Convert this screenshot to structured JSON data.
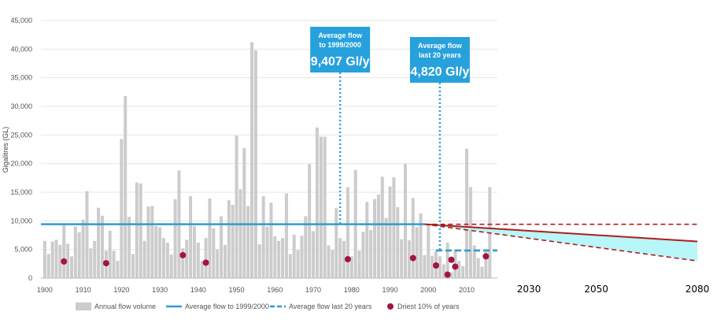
{
  "chart_data": {
    "type": "bar",
    "ylabel": "Gigalitres (GL)",
    "y_ticks": [
      "0",
      "5,000",
      "10,000",
      "15,000",
      "20,000",
      "25,000",
      "30,000",
      "35,000",
      "40,000",
      "45,000"
    ],
    "ylim": [
      0,
      45000
    ],
    "x_ticks": [
      "1900",
      "1910",
      "1920",
      "1930",
      "1940",
      "1950",
      "1960",
      "1970",
      "1980",
      "1990",
      "2000",
      "2010"
    ],
    "x_ticks_projection": [
      "2030",
      "2050",
      "2080"
    ],
    "xlim": [
      1899,
      2018
    ],
    "grid": true,
    "colors": {
      "bars": "#cccccc",
      "avg_flow": "#2e9bd6",
      "avg_last20": "#2e9bd6",
      "driest": "#a3153f",
      "projection": "#b01c1c",
      "band": "#b7f6f9",
      "callout": "#27a1dc"
    },
    "annual_flow": {
      "years": [
        1900,
        1901,
        1902,
        1903,
        1904,
        1905,
        1906,
        1907,
        1908,
        1909,
        1910,
        1911,
        1912,
        1913,
        1914,
        1915,
        1916,
        1917,
        1918,
        1919,
        1920,
        1921,
        1922,
        1923,
        1924,
        1925,
        1926,
        1927,
        1928,
        1929,
        1930,
        1931,
        1932,
        1933,
        1934,
        1935,
        1936,
        1937,
        1938,
        1939,
        1940,
        1941,
        1942,
        1943,
        1944,
        1945,
        1946,
        1947,
        1948,
        1949,
        1950,
        1951,
        1952,
        1953,
        1954,
        1955,
        1956,
        1957,
        1958,
        1959,
        1960,
        1961,
        1962,
        1963,
        1964,
        1965,
        1966,
        1967,
        1968,
        1969,
        1970,
        1971,
        1972,
        1973,
        1974,
        1975,
        1976,
        1977,
        1978,
        1979,
        1980,
        1981,
        1982,
        1983,
        1984,
        1985,
        1986,
        1987,
        1988,
        1989,
        1990,
        1991,
        1992,
        1993,
        1994,
        1995,
        1996,
        1997,
        1998,
        1999,
        2000,
        2001,
        2002,
        2003,
        2004,
        2005,
        2006,
        2007,
        2008,
        2009,
        2010,
        2011,
        2012,
        2013,
        2014,
        2015,
        2016
      ],
      "values": [
        6500,
        4200,
        6400,
        6700,
        5800,
        9200,
        6000,
        3800,
        9000,
        8000,
        10200,
        15200,
        5200,
        6500,
        12300,
        10900,
        4800,
        8300,
        4800,
        3000,
        24300,
        31800,
        10700,
        4200,
        16700,
        16500,
        6500,
        12500,
        12600,
        9100,
        8900,
        7000,
        6200,
        4100,
        13800,
        18800,
        5200,
        6700,
        14300,
        9100,
        6200,
        3000,
        7000,
        13900,
        8700,
        5000,
        10800,
        5800,
        13600,
        12800,
        24900,
        15500,
        22700,
        12600,
        41200,
        39800,
        5900,
        14300,
        9000,
        13200,
        7300,
        6500,
        7000,
        14800,
        4200,
        7600,
        4900,
        7400,
        10800,
        19900,
        8200,
        26300,
        24700,
        24700,
        5700,
        4900,
        12200,
        7000,
        6500,
        15900,
        3800,
        18900,
        4800,
        8100,
        13300,
        8400,
        13800,
        14600,
        17700,
        10500,
        16000,
        17600,
        12400,
        6800,
        20000,
        6600,
        14000,
        8900,
        11300,
        4000,
        9300,
        3900,
        4700,
        3800,
        2400,
        6200,
        1000,
        5000,
        3000,
        2100,
        22600,
        15900,
        5700,
        3500,
        2000,
        4600,
        15900
      ]
    },
    "avg_flow_to_1999_2000": {
      "value": 9407,
      "x_range": [
        1899,
        1999
      ]
    },
    "avg_flow_last_20_years": {
      "value": 4820,
      "x_range": [
        2002,
        2018
      ]
    },
    "driest_10_percent": {
      "years": [
        1905,
        1916,
        1936,
        1942,
        1979,
        1996,
        2002,
        2005,
        2006,
        2007,
        2015
      ],
      "values": [
        2900,
        2600,
        4000,
        2700,
        3300,
        3500,
        2200,
        600,
        3200,
        2000,
        3800
      ]
    },
    "projection": {
      "x": [
        1999,
        2080
      ],
      "upper": [
        9407,
        9407
      ],
      "central": [
        9407,
        6400
      ],
      "lower": [
        9407,
        3000
      ]
    },
    "callouts": [
      {
        "line1": "Average flow",
        "line2": "to 1999/2000",
        "value": "9,407 Gl/y",
        "year": 1977
      },
      {
        "line1": "Average flow",
        "line2": "last 20 years",
        "value": "4,820 Gl/y",
        "year": 2003
      }
    ],
    "legend": {
      "placement": "bottom",
      "items": [
        {
          "kind": "bar",
          "label": "Annual flow volume"
        },
        {
          "kind": "line",
          "label": "Average flow to 1999/2000"
        },
        {
          "kind": "dash",
          "label": "Average flow last 20 years"
        },
        {
          "kind": "dot",
          "label": "Driest 10% of years"
        }
      ]
    }
  }
}
